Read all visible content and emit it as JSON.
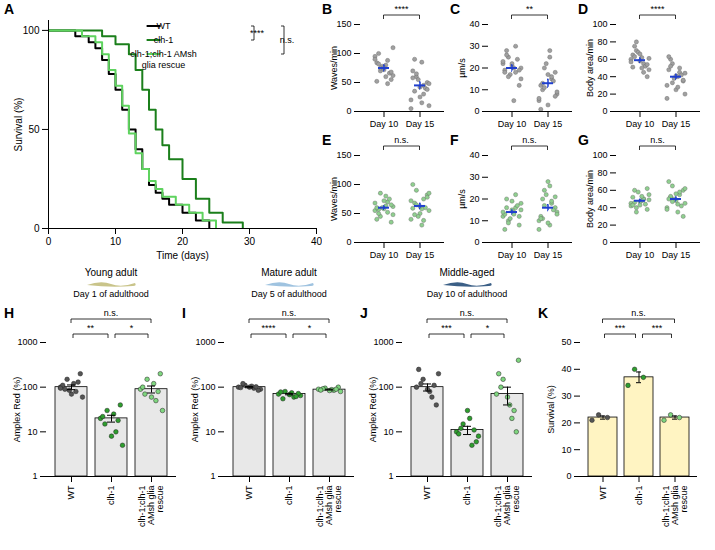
{
  "chart_data": [
    {
      "panel": "A",
      "type": "line",
      "line_style": "step",
      "legend": "top-right",
      "x_label": "Time (days)",
      "y_label": "Survival (%)",
      "xlim": [
        0,
        40
      ],
      "xticks": [
        0,
        10,
        20,
        30,
        40
      ],
      "ylim": [
        0,
        105
      ],
      "yticks": [
        0,
        50,
        100
      ],
      "series": [
        {
          "name": "WT",
          "color": "#000000",
          "x": [
            0,
            4,
            6,
            7,
            8,
            9,
            10,
            11,
            12,
            13,
            14,
            15,
            16,
            17,
            18,
            20,
            22,
            24
          ],
          "values": [
            100,
            97,
            94,
            91,
            85,
            78,
            70,
            60,
            50,
            40,
            30,
            22,
            18,
            15,
            12,
            8,
            4,
            0
          ]
        },
        {
          "name": "clh-1",
          "color": "#1b7f1b",
          "x": [
            0,
            8,
            10,
            12,
            13,
            14,
            15,
            16,
            17,
            18,
            20,
            22,
            24,
            26,
            29
          ],
          "values": [
            100,
            97,
            93,
            88,
            80,
            70,
            60,
            50,
            42,
            35,
            25,
            15,
            8,
            3,
            0
          ]
        },
        {
          "name": "clh-1;clh-1 AMsh glia rescue",
          "color": "#5fd35f",
          "x": [
            0,
            5,
            7,
            8,
            9,
            10,
            11,
            12,
            13,
            14,
            15,
            16,
            17,
            19,
            21,
            23,
            25
          ],
          "values": [
            100,
            97,
            94,
            88,
            80,
            72,
            62,
            48,
            38,
            30,
            24,
            20,
            16,
            12,
            8,
            4,
            0
          ]
        }
      ],
      "annotations": [
        {
          "text": "****",
          "between": [
            "WT",
            "clh-1"
          ]
        },
        {
          "text": "n.s.",
          "between": [
            "WT",
            "clh-1;clh-1 AMsh glia rescue"
          ]
        }
      ]
    },
    {
      "panel": "B",
      "type": "scatter",
      "y_label": "Waves/min",
      "categories": [
        "Day 10",
        "Day 15"
      ],
      "color": "#a0a0a0",
      "ylim": [
        0,
        150
      ],
      "yticks": [
        0,
        50,
        100,
        150
      ],
      "values": [
        [
          95,
          88,
          70,
          62,
          80,
          100,
          55,
          72,
          84,
          66,
          78,
          90,
          48,
          75,
          110,
          60,
          82,
          68,
          76,
          52
        ],
        [
          20,
          45,
          60,
          10,
          85,
          35,
          50,
          25,
          70,
          40,
          55,
          5,
          30,
          65,
          48,
          15,
          90,
          38,
          42,
          58
        ]
      ],
      "means": [
        75,
        45
      ],
      "sem": [
        5,
        6
      ],
      "annotations": [
        {
          "text": "****",
          "between": [
            "Day 10",
            "Day 15"
          ]
        }
      ]
    },
    {
      "panel": "C",
      "type": "scatter",
      "y_label": "µm/s",
      "categories": [
        "Day 10",
        "Day 15"
      ],
      "color": "#a0a0a0",
      "ylim": [
        0,
        40
      ],
      "yticks": [
        0,
        10,
        20,
        30,
        40
      ],
      "values": [
        [
          22,
          18,
          25,
          15,
          20,
          28,
          12,
          21,
          19,
          24,
          17,
          23,
          30,
          16,
          20,
          5,
          26,
          19,
          22,
          18
        ],
        [
          5,
          15,
          20,
          8,
          25,
          10,
          18,
          3,
          12,
          14,
          22,
          6,
          16,
          11,
          9,
          28,
          13,
          7,
          17,
          1
        ]
      ],
      "means": [
        20,
        13
      ],
      "sem": [
        1.4,
        1.8
      ],
      "annotations": [
        {
          "text": "**",
          "between": [
            "Day 10",
            "Day 15"
          ]
        }
      ]
    },
    {
      "panel": "D",
      "type": "scatter",
      "y_label": "Body area/min",
      "categories": [
        "Day 10",
        "Day 15"
      ],
      "color": "#a0a0a0",
      "ylim": [
        0,
        100
      ],
      "yticks": [
        0,
        20,
        40,
        60,
        80,
        100
      ],
      "values": [
        [
          60,
          55,
          70,
          48,
          62,
          75,
          40,
          58,
          65,
          52,
          68,
          57,
          45,
          80,
          61,
          50,
          63,
          54,
          66,
          51
        ],
        [
          30,
          45,
          55,
          20,
          40,
          60,
          35,
          25,
          48,
          42,
          38,
          15,
          50,
          33,
          44,
          28,
          52,
          36,
          41,
          63
        ]
      ],
      "means": [
        59,
        40
      ],
      "sem": [
        2.5,
        2.8
      ],
      "annotations": [
        {
          "text": "****",
          "between": [
            "Day 10",
            "Day 15"
          ]
        }
      ]
    },
    {
      "panel": "E",
      "type": "scatter",
      "y_label": "Waves/min",
      "categories": [
        "Day 10",
        "Day 15"
      ],
      "color": "#8fcf8f",
      "ylim": [
        0,
        150
      ],
      "yticks": [
        0,
        50,
        100,
        150
      ],
      "values": [
        [
          55,
          70,
          45,
          62,
          80,
          50,
          65,
          58,
          40,
          75,
          60,
          68,
          52,
          85,
          48,
          63,
          57,
          35,
          72,
          60
        ],
        [
          40,
          75,
          90,
          55,
          30,
          68,
          82,
          50,
          100,
          60,
          45,
          72,
          38,
          65,
          85,
          58,
          48,
          78,
          62,
          59
        ]
      ],
      "means": [
        60,
        63
      ],
      "sem": [
        3,
        4.5
      ],
      "annotations": [
        {
          "text": "n.s.",
          "between": [
            "Day 10",
            "Day 15"
          ]
        }
      ]
    },
    {
      "panel": "F",
      "type": "scatter",
      "y_label": "µm/s",
      "categories": [
        "Day 10",
        "Day 15"
      ],
      "color": "#8fcf8f",
      "ylim": [
        0,
        40
      ],
      "yticks": [
        0,
        10,
        20,
        30,
        40
      ],
      "values": [
        [
          12,
          16,
          10,
          18,
          14,
          20,
          8,
          15,
          13,
          17,
          11,
          14,
          22,
          9,
          15,
          13,
          16,
          12,
          19,
          6
        ],
        [
          10,
          18,
          24,
          14,
          8,
          20,
          16,
          28,
          12,
          15,
          22,
          6,
          19,
          17,
          13,
          26,
          11,
          21,
          9,
          11
        ]
      ],
      "means": [
        14,
        16
      ],
      "sem": [
        0.9,
        1.4
      ],
      "annotations": [
        {
          "text": "n.s.",
          "between": [
            "Day 10",
            "Day 15"
          ]
        }
      ]
    },
    {
      "panel": "G",
      "type": "scatter",
      "y_label": "Body area/min",
      "categories": [
        "Day 10",
        "Day 15"
      ],
      "color": "#8fcf8f",
      "ylim": [
        0,
        100
      ],
      "yticks": [
        0,
        20,
        40,
        60,
        80,
        100
      ],
      "values": [
        [
          45,
          50,
          40,
          55,
          48,
          60,
          38,
          47,
          52,
          44,
          58,
          42,
          50,
          35,
          49,
          53,
          46,
          62,
          43,
          43
        ],
        [
          40,
          55,
          65,
          45,
          35,
          52,
          60,
          48,
          70,
          42,
          50,
          38,
          58,
          47,
          62,
          44,
          53,
          30,
          56,
          50
        ]
      ],
      "means": [
        48,
        50
      ],
      "sem": [
        1.6,
        2.3
      ],
      "annotations": [
        {
          "text": "n.s.",
          "between": [
            "Day 10",
            "Day 15"
          ]
        }
      ]
    },
    {
      "panel": "H",
      "type": "bar",
      "title": "Young adult",
      "subtitle": "Day 1 of adulthood",
      "y_label": "Amplex Red (%)",
      "log": "y",
      "categories": [
        "WT",
        "clh-1",
        "clh-1;clh-1 AMsh glia rescue"
      ],
      "color": "#e8e8e8",
      "colors": [
        "#555555",
        "#2e9e2e",
        "#7fd67f"
      ],
      "ylim": [
        1,
        1000
      ],
      "yticks": [
        1,
        10,
        100,
        1000
      ],
      "values": [
        100,
        20,
        90
      ],
      "sem": [
        12,
        3.5,
        16
      ],
      "points": [
        [
          100,
          80,
          150,
          60,
          120,
          90,
          200,
          70,
          110,
          130,
          85,
          95
        ],
        [
          20,
          10,
          30,
          5,
          25,
          15,
          40,
          8,
          22,
          18
        ],
        [
          90,
          50,
          150,
          30,
          120,
          70,
          200,
          60,
          100,
          80
        ]
      ],
      "annotations": [
        {
          "text": "**",
          "between": [
            "WT",
            "clh-1"
          ]
        },
        {
          "text": "*",
          "between": [
            "clh-1",
            "clh-1;clh-1 AMsh glia rescue"
          ]
        },
        {
          "text": "n.s.",
          "between": [
            "WT",
            "clh-1;clh-1 AMsh glia rescue"
          ]
        }
      ]
    },
    {
      "panel": "I",
      "type": "bar",
      "title": "Mature adult",
      "subtitle": "Day 5 of adulthood",
      "y_label": "Amplex Red (%)",
      "log": "y",
      "categories": [
        "WT",
        "clh-1",
        "clh-1;clh-1 AMsh glia rescue"
      ],
      "color": "#e8e8e8",
      "colors": [
        "#555555",
        "#2e9e2e",
        "#7fd67f"
      ],
      "ylim": [
        1,
        1000
      ],
      "yticks": [
        1,
        10,
        100,
        1000
      ],
      "values": [
        100,
        70,
        88
      ],
      "sem": [
        3,
        2.5,
        2
      ],
      "points": [
        [
          100,
          95,
          110,
          90,
          105,
          120,
          85,
          100,
          98,
          102
        ],
        [
          70,
          60,
          80,
          65,
          75,
          55,
          72,
          68,
          78,
          62
        ],
        [
          90,
          85,
          95,
          80,
          88,
          92,
          100,
          84,
          86,
          90
        ]
      ],
      "annotations": [
        {
          "text": "****",
          "between": [
            "WT",
            "clh-1"
          ]
        },
        {
          "text": "*",
          "between": [
            "clh-1",
            "clh-1;clh-1 AMsh glia rescue"
          ]
        },
        {
          "text": "n.s.",
          "between": [
            "WT",
            "clh-1;clh-1 AMsh glia rescue"
          ]
        }
      ]
    },
    {
      "panel": "J",
      "type": "bar",
      "title": "Middle-aged",
      "subtitle": "Day 10 of adulthood",
      "y_label": "Amplex Red (%)",
      "log": "y",
      "categories": [
        "WT",
        "clh-1",
        "clh-1;clh-1 AMsh glia rescue"
      ],
      "color": "#e8e8e8",
      "colors": [
        "#555555",
        "#2e9e2e",
        "#7fd67f"
      ],
      "ylim": [
        1,
        1000
      ],
      "yticks": [
        1,
        10,
        100,
        1000
      ],
      "values": [
        100,
        11,
        70
      ],
      "sem": [
        18,
        2.3,
        30
      ],
      "points": [
        [
          100,
          60,
          150,
          200,
          80,
          120,
          40,
          90,
          250,
          110
        ],
        [
          10,
          5,
          15,
          8,
          20,
          12,
          6,
          30,
          9,
          11
        ],
        [
          70,
          20,
          150,
          400,
          40,
          100,
          10,
          60,
          200,
          30
        ]
      ],
      "annotations": [
        {
          "text": "***",
          "between": [
            "WT",
            "clh-1"
          ]
        },
        {
          "text": "*",
          "between": [
            "clh-1",
            "clh-1;clh-1 AMsh glia rescue"
          ]
        },
        {
          "text": "n.s.",
          "between": [
            "WT",
            "clh-1;clh-1 AMsh glia rescue"
          ]
        }
      ]
    },
    {
      "panel": "K",
      "type": "bar",
      "y_label": "Survival (%)",
      "categories": [
        "WT",
        "clh-1",
        "clh-1;clh-1 AMsh glia rescue"
      ],
      "color": "#fff4c2",
      "colors": [
        "#555555",
        "#2e9e2e",
        "#7fd67f"
      ],
      "ylim": [
        0,
        50
      ],
      "yticks": [
        0,
        10,
        20,
        30,
        40,
        50
      ],
      "values": [
        22,
        37,
        22
      ],
      "sem": [
        0.6,
        2,
        0.6
      ],
      "points": [
        [
          21,
          22,
          23
        ],
        [
          34,
          37,
          40
        ],
        [
          21,
          22,
          23
        ]
      ],
      "annotations": [
        {
          "text": "***",
          "between": [
            "WT",
            "clh-1"
          ]
        },
        {
          "text": "***",
          "between": [
            "clh-1",
            "clh-1;clh-1 AMsh glia rescue"
          ]
        },
        {
          "text": "n.s.",
          "between": [
            "WT",
            "clh-1;clh-1 AMsh glia rescue"
          ]
        }
      ]
    }
  ]
}
